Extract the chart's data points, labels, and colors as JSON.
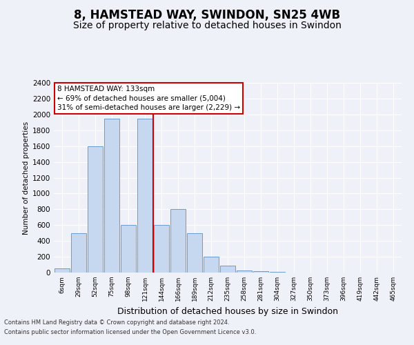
{
  "title1": "8, HAMSTEAD WAY, SWINDON, SN25 4WB",
  "title2": "Size of property relative to detached houses in Swindon",
  "xlabel": "Distribution of detached houses by size in Swindon",
  "ylabel": "Number of detached properties",
  "categories": [
    "6sqm",
    "29sqm",
    "52sqm",
    "75sqm",
    "98sqm",
    "121sqm",
    "144sqm",
    "166sqm",
    "189sqm",
    "212sqm",
    "235sqm",
    "258sqm",
    "281sqm",
    "304sqm",
    "327sqm",
    "350sqm",
    "373sqm",
    "396sqm",
    "419sqm",
    "442sqm",
    "465sqm"
  ],
  "values": [
    50,
    500,
    1600,
    1950,
    600,
    1950,
    600,
    800,
    500,
    200,
    90,
    30,
    20,
    10,
    0,
    0,
    0,
    0,
    0,
    0,
    0
  ],
  "bar_color": "#c5d8f0",
  "bar_edge_color": "#5b8ec4",
  "annotation_text": "8 HAMSTEAD WAY: 133sqm\n← 69% of detached houses are smaller (5,004)\n31% of semi-detached houses are larger (2,229) →",
  "ylim": [
    0,
    2400
  ],
  "yticks": [
    0,
    200,
    400,
    600,
    800,
    1000,
    1200,
    1400,
    1600,
    1800,
    2000,
    2200,
    2400
  ],
  "footer1": "Contains HM Land Registry data © Crown copyright and database right 2024.",
  "footer2": "Contains public sector information licensed under the Open Government Licence v3.0.",
  "bg_color": "#eef2f8",
  "plot_bg_color": "#eef2f8",
  "grid_color": "#ffffff",
  "title1_fontsize": 12,
  "title2_fontsize": 10,
  "red_line_color": "#cc0000",
  "annotation_box_edge": "#cc0000",
  "red_line_x": 5.48
}
